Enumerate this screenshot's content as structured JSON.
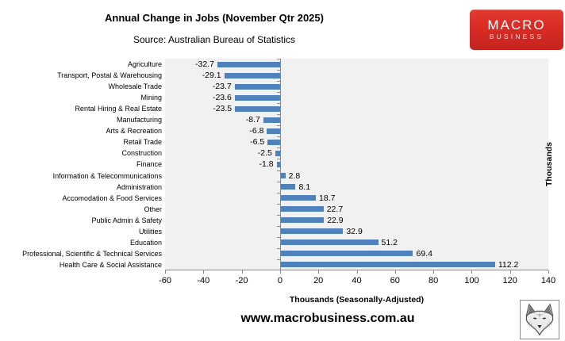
{
  "header": {
    "title": "Annual Change in Jobs (November Qtr 2025)",
    "source": "Source: Australian Bureau of Statistics"
  },
  "logo": {
    "line1": "MACRO",
    "line2": "BUSINESS",
    "bg_color": "#d92b25",
    "text_color": "#ffffff"
  },
  "chart_data": {
    "type": "bar",
    "orientation": "horizontal",
    "title": "Annual Change in Jobs (November Qtr 2025)",
    "categories": [
      "Agriculture",
      "Transport, Postal & Warehousing",
      "Wholesale Trade",
      "Mining",
      "Rental Hiring & Real Estate",
      "Manufacturing",
      "Arts & Recreation",
      "Retail Trade",
      "Construction",
      "Finance",
      "Information & Telecommunications",
      "Administration",
      "Accomodation & Food Services",
      "Other",
      "Public Admin & Safety",
      "Utilities",
      "Education",
      "Professional, Scientific & Technical Services",
      "Health Care & Social Assistance"
    ],
    "values": [
      -32.7,
      -29.1,
      -23.7,
      -23.6,
      -23.5,
      -8.7,
      -6.8,
      -6.5,
      -2.5,
      -1.8,
      2.8,
      8.1,
      18.7,
      22.7,
      22.9,
      32.9,
      51.2,
      69.4,
      112.2
    ],
    "xlabel": "Thousands (Seasonally-Adjusted)",
    "right_axis_label": "Thousands",
    "xticks": [
      -60,
      -40,
      -20,
      0,
      20,
      40,
      60,
      80,
      100,
      120,
      140
    ],
    "xlim": [
      -60,
      140
    ],
    "bar_color": "#4f81bd",
    "plot_bg": "#f1f1f1",
    "axis_color": "#898989",
    "grid": false,
    "legend": false,
    "value_labels": true
  },
  "footer": {
    "website": "www.macrobusiness.com.au"
  },
  "icons": {
    "fox": "fox-head-sketch-logo"
  }
}
